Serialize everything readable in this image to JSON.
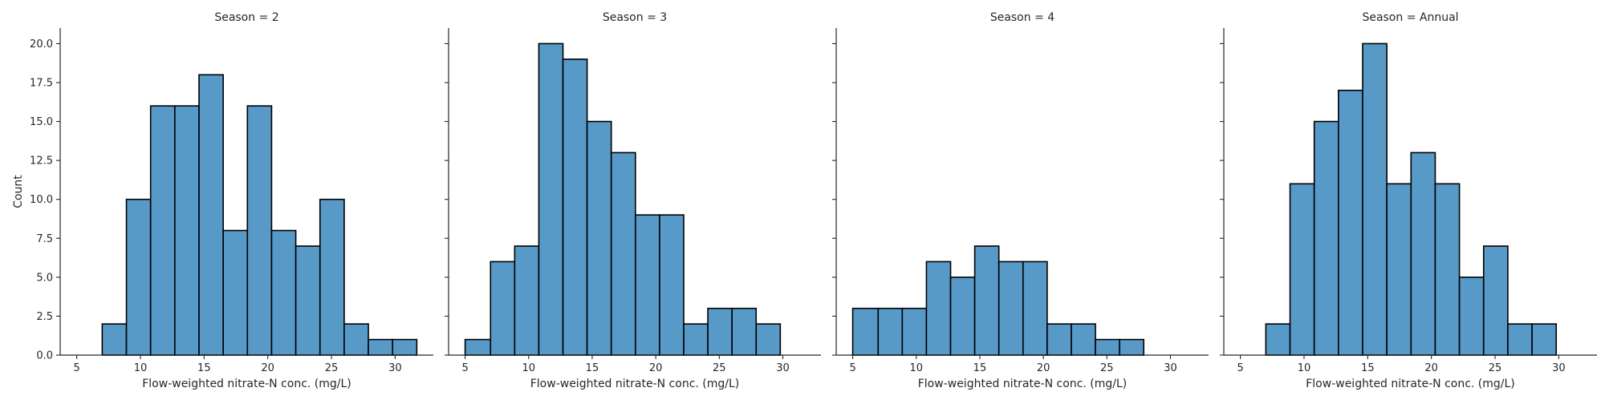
{
  "chart_data": {
    "type": "bar",
    "facet_title_prefix": "Season = ",
    "ylabel": "Count",
    "xlabel": "Flow-weighted nitrate-N conc. (mg/L)",
    "xlim": [
      3.7,
      33.0
    ],
    "ylim": [
      0,
      21
    ],
    "x_ticks": [
      5,
      10,
      15,
      20,
      25,
      30
    ],
    "x_tick_labels": [
      "5",
      "10",
      "15",
      "20",
      "25",
      "30"
    ],
    "y_ticks": [
      0,
      2.5,
      5,
      7.5,
      10,
      12.5,
      15,
      17.5,
      20
    ],
    "y_tick_labels": [
      "0.0",
      "2.5",
      "5.0",
      "7.5",
      "10.0",
      "12.5",
      "15.0",
      "17.5",
      "20.0"
    ],
    "bar_color": "#5799c7",
    "edge_color": "#000000",
    "facets": [
      {
        "season": "2",
        "title": "Season = 2",
        "bins": [
          {
            "x0": 7.0,
            "x1": 8.9,
            "count": 2
          },
          {
            "x0": 8.9,
            "x1": 10.8,
            "count": 10
          },
          {
            "x0": 10.8,
            "x1": 12.7,
            "count": 16
          },
          {
            "x0": 12.7,
            "x1": 14.6,
            "count": 16
          },
          {
            "x0": 14.6,
            "x1": 16.5,
            "count": 18
          },
          {
            "x0": 16.5,
            "x1": 18.4,
            "count": 8
          },
          {
            "x0": 18.4,
            "x1": 20.3,
            "count": 16
          },
          {
            "x0": 20.3,
            "x1": 22.2,
            "count": 8
          },
          {
            "x0": 22.2,
            "x1": 24.1,
            "count": 7
          },
          {
            "x0": 24.1,
            "x1": 26.0,
            "count": 10
          },
          {
            "x0": 26.0,
            "x1": 27.9,
            "count": 2
          },
          {
            "x0": 27.9,
            "x1": 29.8,
            "count": 1
          },
          {
            "x0": 29.8,
            "x1": 31.7,
            "count": 1
          }
        ]
      },
      {
        "season": "3",
        "title": "Season = 3",
        "bins": [
          {
            "x0": 5.0,
            "x1": 7.0,
            "count": 1
          },
          {
            "x0": 7.0,
            "x1": 8.9,
            "count": 6
          },
          {
            "x0": 8.9,
            "x1": 10.8,
            "count": 7
          },
          {
            "x0": 10.8,
            "x1": 12.7,
            "count": 20
          },
          {
            "x0": 12.7,
            "x1": 14.6,
            "count": 19
          },
          {
            "x0": 14.6,
            "x1": 16.5,
            "count": 15
          },
          {
            "x0": 16.5,
            "x1": 18.4,
            "count": 13
          },
          {
            "x0": 18.4,
            "x1": 20.3,
            "count": 9
          },
          {
            "x0": 20.3,
            "x1": 22.2,
            "count": 9
          },
          {
            "x0": 22.2,
            "x1": 24.1,
            "count": 2
          },
          {
            "x0": 24.1,
            "x1": 26.0,
            "count": 3
          },
          {
            "x0": 26.0,
            "x1": 27.9,
            "count": 3
          },
          {
            "x0": 27.9,
            "x1": 29.8,
            "count": 2
          }
        ]
      },
      {
        "season": "4",
        "title": "Season = 4",
        "bins": [
          {
            "x0": 5.0,
            "x1": 7.0,
            "count": 3
          },
          {
            "x0": 7.0,
            "x1": 8.9,
            "count": 3
          },
          {
            "x0": 8.9,
            "x1": 10.8,
            "count": 3
          },
          {
            "x0": 10.8,
            "x1": 12.7,
            "count": 6
          },
          {
            "x0": 12.7,
            "x1": 14.6,
            "count": 5
          },
          {
            "x0": 14.6,
            "x1": 16.5,
            "count": 7
          },
          {
            "x0": 16.5,
            "x1": 18.4,
            "count": 6
          },
          {
            "x0": 18.4,
            "x1": 20.3,
            "count": 6
          },
          {
            "x0": 20.3,
            "x1": 22.2,
            "count": 2
          },
          {
            "x0": 22.2,
            "x1": 24.1,
            "count": 2
          },
          {
            "x0": 24.1,
            "x1": 26.0,
            "count": 1
          },
          {
            "x0": 26.0,
            "x1": 27.9,
            "count": 1
          }
        ]
      },
      {
        "season": "Annual",
        "title": "Season = Annual",
        "bins": [
          {
            "x0": 7.0,
            "x1": 8.9,
            "count": 2
          },
          {
            "x0": 8.9,
            "x1": 10.8,
            "count": 11
          },
          {
            "x0": 10.8,
            "x1": 12.7,
            "count": 15
          },
          {
            "x0": 12.7,
            "x1": 14.6,
            "count": 17
          },
          {
            "x0": 14.6,
            "x1": 16.5,
            "count": 20
          },
          {
            "x0": 16.5,
            "x1": 18.4,
            "count": 11
          },
          {
            "x0": 18.4,
            "x1": 20.3,
            "count": 13
          },
          {
            "x0": 20.3,
            "x1": 22.2,
            "count": 11
          },
          {
            "x0": 22.2,
            "x1": 24.1,
            "count": 5
          },
          {
            "x0": 24.1,
            "x1": 26.0,
            "count": 7
          },
          {
            "x0": 26.0,
            "x1": 27.9,
            "count": 2
          },
          {
            "x0": 27.9,
            "x1": 29.8,
            "count": 2
          }
        ]
      }
    ]
  }
}
